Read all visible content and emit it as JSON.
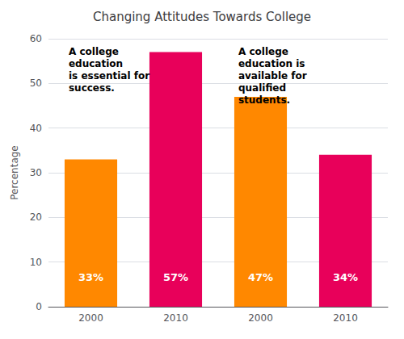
{
  "chart_data": {
    "type": "bar",
    "title": "Changing Attitudes Towards College",
    "ylabel": "Percentage",
    "categories": [
      "2000",
      "2010",
      "2000",
      "2010"
    ],
    "values": [
      33,
      57,
      47,
      34
    ],
    "value_labels": [
      "33%",
      "57%",
      "47%",
      "34%"
    ],
    "data_labels": true,
    "colors": [
      "#FF8800",
      "#E8005A",
      "#FF8800",
      "#E8005A"
    ],
    "ylim": [
      0,
      60
    ],
    "yticks": [
      0,
      10,
      20,
      30,
      40,
      50,
      60
    ],
    "grid": true,
    "annotations": [
      "A college\neducation\nis essential for\nsuccess.",
      "A college\neducation is\navailable for\nqualified\nstudents."
    ]
  }
}
